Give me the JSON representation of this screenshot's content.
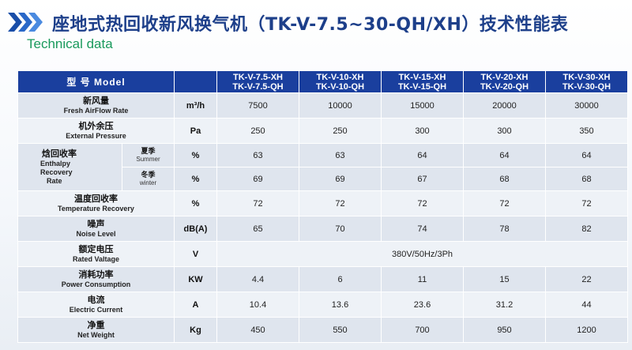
{
  "header": {
    "title": "座地式热回收新风换气机（TK-V-7.5~30-QH/XH）技术性能表",
    "subtitle": "Technical data"
  },
  "table": {
    "model_header": "型 号 Model",
    "models": [
      {
        "line1": "TK-V-7.5-XH",
        "line2": "TK-V-7.5-QH"
      },
      {
        "line1": "TK-V-10-XH",
        "line2": "TK-V-10-QH"
      },
      {
        "line1": "TK-V-15-XH",
        "line2": "TK-V-15-QH"
      },
      {
        "line1": "TK-V-20-XH",
        "line2": "TK-V-20-QH"
      },
      {
        "line1": "TK-V-30-XH",
        "line2": "TK-V-30-QH"
      }
    ],
    "rows": {
      "airflow": {
        "zh": "新风量",
        "en": "Fresh AirFlow Rate",
        "unit": "m³/h",
        "values": [
          "7500",
          "10000",
          "15000",
          "20000",
          "30000"
        ]
      },
      "pressure": {
        "zh": "机外余压",
        "en": "External Pressure",
        "unit": "Pa",
        "values": [
          "250",
          "250",
          "300",
          "300",
          "350"
        ]
      },
      "enthalpy": {
        "zh": "焓回收率",
        "en1": "Enthalpy",
        "en2": "Recovery",
        "en3": "Rate",
        "summer": {
          "zh": "夏季",
          "en": "Summer",
          "unit": "%",
          "values": [
            "63",
            "63",
            "64",
            "64",
            "64"
          ]
        },
        "winter": {
          "zh": "冬季",
          "en": "winter",
          "unit": "%",
          "values": [
            "69",
            "69",
            "67",
            "68",
            "68"
          ]
        }
      },
      "temp_recovery": {
        "zh": "温度回收率",
        "en": "Temperature Recovery",
        "unit": "%",
        "values": [
          "72",
          "72",
          "72",
          "72",
          "72"
        ]
      },
      "noise": {
        "zh": "噪声",
        "en": "Noise Level",
        "unit": "dB(A)",
        "values": [
          "65",
          "70",
          "74",
          "78",
          "82"
        ]
      },
      "voltage": {
        "zh": "额定电压",
        "en": "Rated Valtage",
        "unit": "V",
        "value": "380V/50Hz/3Ph"
      },
      "power": {
        "zh": "消耗功率",
        "en": "Power Consumption",
        "unit": "KW",
        "values": [
          "4.4",
          "6",
          "11",
          "15",
          "22"
        ]
      },
      "current": {
        "zh": "电流",
        "en": "Electric Current",
        "unit": "A",
        "values": [
          "10.4",
          "13.6",
          "23.6",
          "31.2",
          "44"
        ]
      },
      "weight": {
        "zh": "净重",
        "en": "Net Weight",
        "unit": "Kg",
        "values": [
          "450",
          "550",
          "700",
          "950",
          "1200"
        ]
      }
    }
  }
}
